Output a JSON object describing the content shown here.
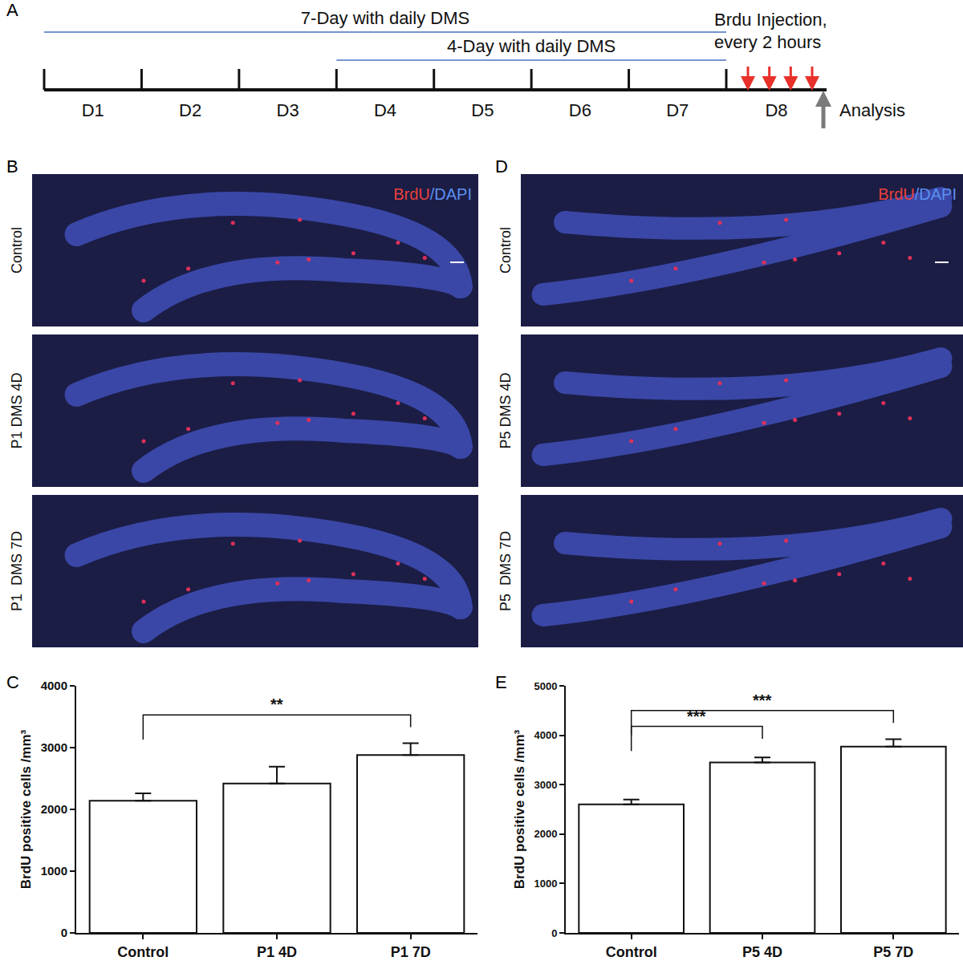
{
  "timeline": {
    "panel": "A",
    "days": [
      "D1",
      "D2",
      "D3",
      "D4",
      "D5",
      "D6",
      "D7",
      "D8"
    ],
    "treatments": [
      {
        "label": "7-Day with daily DMS",
        "start": "D1",
        "end": "D7"
      },
      {
        "label": "4-Day with daily DMS",
        "start": "D4",
        "end": "D7"
      }
    ],
    "injection": {
      "text": [
        "Brdu Injection,",
        "every 2 hours"
      ],
      "day": "D8",
      "count": 4
    },
    "analysis": "Analysis"
  },
  "images": [
    {
      "panel": "B",
      "stain": [
        "BrdU",
        "/DAPI"
      ],
      "rows": [
        "Control",
        "P1 DMS 4D",
        "P1  DMS 7D"
      ]
    },
    {
      "panel": "D",
      "stain": [
        "BrdU",
        "/DAPI"
      ],
      "rows": [
        "Control",
        "P5 DMS 4D",
        "P5  DMS 7D"
      ]
    }
  ],
  "chart_data": [
    {
      "panel": "C",
      "type": "bar",
      "categories": [
        "Control",
        "P1 4D",
        "P1 7D"
      ],
      "values": [
        2140,
        2420,
        2880
      ],
      "errors": [
        120,
        270,
        190
      ],
      "colors": [
        "#ffffff",
        "#ffffff",
        "#ffffff"
      ],
      "ylabel": "BrdU positive cells /mm³",
      "ylim": [
        0,
        4000
      ],
      "yticks": [
        0,
        1000,
        2000,
        3000,
        4000
      ],
      "significance": [
        {
          "from": "Control",
          "to": "P1 7D",
          "y": 3530,
          "label": "**"
        }
      ]
    },
    {
      "panel": "E",
      "type": "bar",
      "categories": [
        "Control",
        "P5 4D",
        "P5 7D"
      ],
      "values": [
        2600,
        3450,
        3770
      ],
      "errors": [
        100,
        100,
        150
      ],
      "colors": [
        "#ffffff",
        "#ffffff",
        "#ffffff"
      ],
      "ylabel": "BrdU positive cells /mm³",
      "ylim": [
        0,
        5000
      ],
      "yticks": [
        0,
        1000,
        2000,
        3000,
        4000,
        5000
      ],
      "significance": [
        {
          "from": "Control",
          "to": "P5 4D",
          "y": 4180,
          "label": "***"
        },
        {
          "from": "Control",
          "to": "P5 7D",
          "y": 4500,
          "label": "***"
        }
      ]
    }
  ]
}
